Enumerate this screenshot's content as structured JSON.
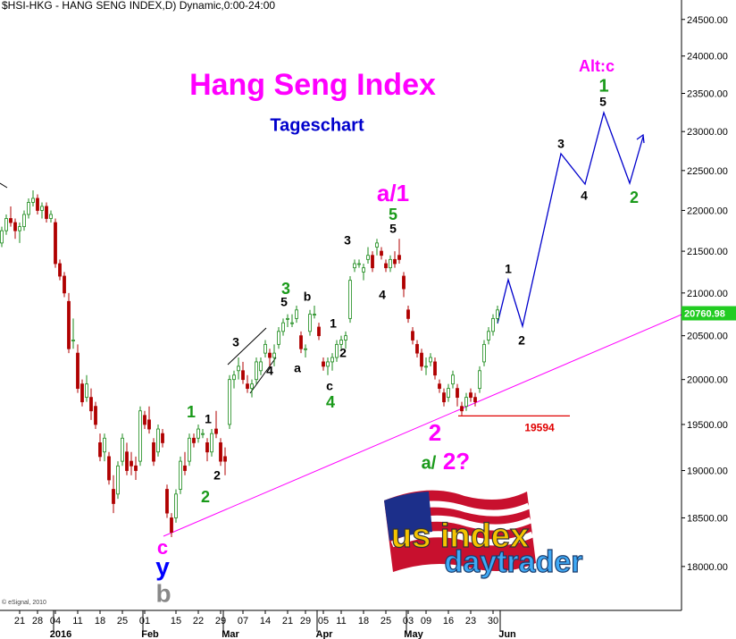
{
  "chart_data": {
    "type": "candlestick",
    "header": "$HSI-HKG - HANG SENG INDEX,D) Dynamic,0:00-24:00",
    "title": "Hang Seng Index",
    "subtitle": "Tageschart",
    "copyright": "© eSignal, 2010",
    "logo": [
      "us index",
      "daytrader"
    ],
    "categories": [
      null,
      null,
      null,
      null,
      "21",
      null,
      null,
      null,
      "28",
      null,
      null,
      null,
      "04",
      null,
      null,
      null,
      null,
      "11",
      null,
      null,
      null,
      null,
      "18",
      null,
      null,
      null,
      null,
      "25",
      null,
      null,
      null,
      null,
      "01",
      null,
      null,
      null,
      null,
      null,
      null,
      "15",
      null,
      null,
      null,
      null,
      "22",
      null,
      null,
      null,
      null,
      "29",
      null,
      null,
      null,
      null,
      "07",
      null,
      null,
      null,
      null,
      "14",
      null,
      null,
      null,
      null,
      "21",
      null,
      null,
      null,
      "29",
      null,
      null,
      null,
      "05",
      null,
      null,
      null,
      "11",
      null,
      null,
      null,
      null,
      "18",
      null,
      null,
      null,
      null,
      "25",
      null,
      null,
      null,
      null,
      "03",
      null,
      null,
      null,
      "09",
      null,
      null,
      null,
      null,
      "16",
      null,
      null,
      null,
      null,
      "23",
      null,
      null,
      null,
      null,
      "30",
      null,
      null
    ],
    "months": [
      null,
      null,
      null,
      null,
      null,
      null,
      null,
      null,
      null,
      null,
      null,
      null,
      "2016",
      null,
      null,
      null,
      null,
      null,
      null,
      null,
      null,
      null,
      null,
      null,
      null,
      null,
      null,
      null,
      null,
      null,
      null,
      null,
      "Feb",
      null,
      null,
      null,
      null,
      null,
      null,
      null,
      null,
      null,
      null,
      null,
      null,
      null,
      null,
      null,
      null,
      null,
      "Mar",
      null,
      null,
      null,
      null,
      null,
      null,
      null,
      null,
      null,
      null,
      null,
      null,
      null,
      null,
      null,
      null,
      null,
      null,
      null,
      null,
      "Apr",
      null,
      null,
      null,
      null,
      null,
      null,
      null,
      null,
      null,
      null,
      null,
      null,
      null,
      null,
      null,
      null,
      null,
      null,
      null,
      "May",
      null,
      null,
      null,
      null,
      null,
      null,
      null,
      null,
      null,
      null,
      null,
      null,
      null,
      null,
      null,
      null,
      null,
      null,
      null,
      null,
      "Jun"
    ],
    "open": [
      21600,
      21750,
      21900,
      21850,
      21750,
      21800,
      21950,
      22100,
      22150,
      22000,
      22050,
      21900,
      21850,
      21350,
      21200,
      20900,
      20450,
      20300,
      19950,
      19800,
      19800,
      19700,
      19300,
      19200,
      19150,
      18800,
      18750,
      19100,
      19200,
      19100,
      19050,
      19100,
      19600,
      19550,
      19300,
      19200,
      19400,
      18800,
      18500,
      18500,
      18800,
      19050,
      19100,
      19350,
      19350,
      19400,
      19300,
      19200,
      19450,
      19300,
      19150,
      19500,
      20000,
      20100,
      20100,
      19950,
      19900,
      20000,
      20100,
      20300,
      20300,
      20250,
      20400,
      20550,
      20700,
      20650,
      20700,
      20500,
      20350,
      20550,
      20750,
      20600,
      20200,
      20150,
      20200,
      20250,
      20400,
      20450,
      20700,
      21300,
      21350,
      21250,
      21400,
      21450,
      21550,
      21500,
      21350,
      21300,
      21400,
      21450,
      21200,
      20800,
      20550,
      20400,
      20300,
      20150,
      20200,
      20200,
      19950,
      19850,
      19800,
      19950,
      19900,
      19700,
      19700,
      19850,
      19800,
      19900,
      20200,
      20450,
      20550,
      20700,
      null
    ],
    "high": [
      21800,
      21950,
      22050,
      21900,
      21850,
      22000,
      22150,
      22250,
      22200,
      22100,
      22100,
      22000,
      21900,
      21400,
      21250,
      21000,
      20700,
      20400,
      20000,
      20050,
      19900,
      19750,
      19400,
      19400,
      19200,
      18950,
      19100,
      19400,
      19300,
      19200,
      19150,
      19700,
      19650,
      19700,
      19350,
      19500,
      19450,
      18850,
      18550,
      18800,
      19150,
      19200,
      19400,
      19400,
      19500,
      19450,
      19350,
      19450,
      19650,
      19350,
      19250,
      20050,
      20100,
      20250,
      20200,
      20050,
      20000,
      20250,
      20250,
      20450,
      20350,
      20400,
      20600,
      20700,
      20750,
      20750,
      20850,
      20550,
      20400,
      20800,
      20850,
      20650,
      20250,
      20250,
      20300,
      20450,
      20500,
      20550,
      21200,
      21400,
      21400,
      21350,
      21550,
      21500,
      21650,
      21550,
      21400,
      21450,
      21500,
      21650,
      21250,
      20850,
      20600,
      20450,
      20350,
      20250,
      20300,
      20250,
      20000,
      19900,
      19950,
      20100,
      19950,
      19750,
      19850,
      19900,
      19850,
      20150,
      20450,
      20600,
      20750,
      20850,
      null
    ],
    "low": [
      21550,
      21700,
      21800,
      21650,
      21600,
      21750,
      21900,
      22050,
      21950,
      21900,
      21850,
      21850,
      21300,
      21150,
      20950,
      20300,
      20350,
      19850,
      19700,
      19750,
      19550,
      19450,
      19100,
      19100,
      18850,
      18550,
      18700,
      19050,
      18950,
      18950,
      18900,
      19050,
      19450,
      19400,
      19050,
      19150,
      19250,
      18500,
      18300,
      18450,
      18750,
      18950,
      19050,
      19250,
      19300,
      19350,
      19100,
      19150,
      19350,
      19050,
      18950,
      19450,
      19900,
      20000,
      19950,
      19850,
      19800,
      19950,
      20050,
      20250,
      20150,
      20150,
      20350,
      20500,
      20600,
      20600,
      20650,
      20300,
      20250,
      20500,
      20700,
      20450,
      20100,
      20050,
      20100,
      20200,
      20350,
      20350,
      20650,
      21250,
      21300,
      21150,
      21350,
      21250,
      21450,
      21400,
      21250,
      21250,
      21300,
      21350,
      20950,
      20650,
      20400,
      20250,
      20100,
      20050,
      20150,
      20000,
      19850,
      19700,
      19750,
      19900,
      19700,
      19600,
      19650,
      19750,
      19700,
      19850,
      20150,
      20400,
      20500,
      20650,
      null
    ],
    "close": [
      21750,
      21900,
      21850,
      21750,
      21800,
      21950,
      22100,
      22150,
      22000,
      22050,
      21900,
      21950,
      21350,
      21200,
      21000,
      20350,
      20450,
      19900,
      19750,
      19950,
      19650,
      19500,
      19150,
      19350,
      18900,
      18650,
      19050,
      19350,
      19000,
      19050,
      19000,
      19650,
      19500,
      19450,
      19100,
      19450,
      19300,
      18550,
      18350,
      18750,
      19100,
      19000,
      19350,
      19300,
      19450,
      19400,
      19200,
      19400,
      19400,
      19100,
      19100,
      20000,
      20050,
      20150,
      20000,
      19900,
      19950,
      20200,
      20200,
      20400,
      20250,
      20300,
      20550,
      20650,
      20700,
      20650,
      20800,
      20350,
      20350,
      20750,
      20750,
      20500,
      20150,
      20200,
      20250,
      20400,
      20450,
      20500,
      21150,
      21350,
      21350,
      21300,
      21450,
      21300,
      21600,
      21450,
      21300,
      21400,
      21350,
      21400,
      21050,
      20700,
      20450,
      20300,
      20150,
      20150,
      20250,
      20050,
      19900,
      19750,
      19900,
      20050,
      19800,
      19650,
      19800,
      19800,
      19750,
      20100,
      20400,
      20550,
      20700,
      20800,
      null
    ],
    "up_color": "#1a8a1a",
    "down_color": "#b00000",
    "log_scale": true,
    "ylim": [
      17560,
      24770
    ],
    "yticks": [
      {
        "value": 24500,
        "label": "24500.00"
      },
      {
        "value": 24000,
        "label": "24000.00"
      },
      {
        "value": 23500,
        "label": "23500.00"
      },
      {
        "value": 23000,
        "label": "23000.00"
      },
      {
        "value": 22500,
        "label": "22500.00"
      },
      {
        "value": 22000,
        "label": "22000.00"
      },
      {
        "value": 21500,
        "label": "21500.00"
      },
      {
        "value": 21000,
        "label": "21000.00"
      },
      {
        "value": 20500,
        "label": "20500.00"
      },
      {
        "value": 20000,
        "label": "20000.00"
      },
      {
        "value": 19500,
        "label": "19500.00"
      },
      {
        "value": 19000,
        "label": "19000.00"
      },
      {
        "value": 18500,
        "label": "18500.00"
      },
      {
        "value": 18000,
        "label": "18000.00"
      }
    ],
    "last_price": {
      "value": 20760.98,
      "label": "20760.98"
    },
    "support_level": 19594,
    "annotations": [
      "Alt:c",
      "1",
      "5",
      "3",
      "4",
      "2",
      "1",
      "2",
      "a/1",
      "5",
      "5",
      "3",
      "4",
      "2",
      "a/",
      "2?",
      "3",
      "5",
      "b",
      "1",
      "2",
      "a",
      "c",
      "4",
      "3",
      "4",
      "1",
      "1",
      "2",
      "2",
      "c",
      "y",
      "b"
    ]
  }
}
